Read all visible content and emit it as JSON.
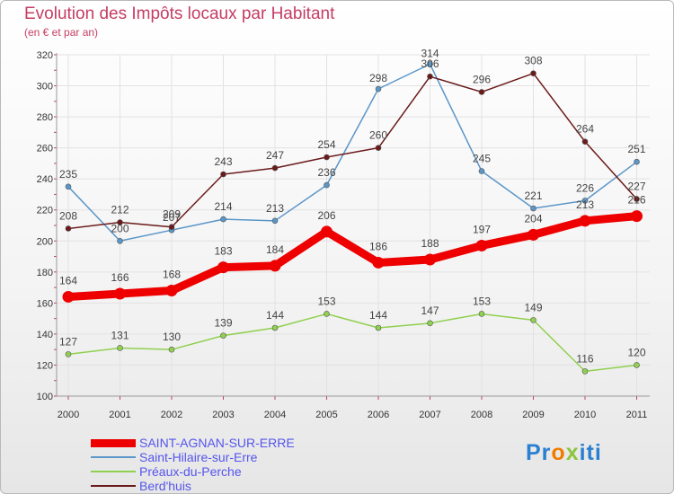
{
  "colors": {
    "title": "#c63d63",
    "grid": "#e2e2e2",
    "axis": "#999999",
    "series": [
      "#ee0000",
      "#5b96c8",
      "#90d050",
      "#6b1a1a"
    ]
  },
  "chart_data": {
    "type": "line",
    "title": "Evolution des Impôts locaux par Habitant",
    "subtitle": "(en € et par an)",
    "xlabel": "",
    "ylabel": "",
    "ylim": [
      100,
      320
    ],
    "yticks": [
      100,
      120,
      140,
      160,
      180,
      200,
      220,
      240,
      260,
      280,
      300,
      320
    ],
    "categories": [
      "2000",
      "2001",
      "2002",
      "2003",
      "2004",
      "2005",
      "2006",
      "2007",
      "2008",
      "2009",
      "2010",
      "2011"
    ],
    "grid": true,
    "legend_position": "bottom-left",
    "series": [
      {
        "name": "SAINT-AGNAN-SUR-ERRE",
        "values": [
          164,
          166,
          168,
          183,
          184,
          206,
          186,
          188,
          197,
          204,
          213,
          216
        ]
      },
      {
        "name": "Saint-Hilaire-sur-Erre",
        "values": [
          235,
          200,
          207,
          214,
          213,
          236,
          298,
          314,
          245,
          221,
          226,
          251
        ]
      },
      {
        "name": "Préaux-du-Perche",
        "values": [
          127,
          131,
          130,
          139,
          144,
          153,
          144,
          147,
          153,
          149,
          116,
          120
        ]
      },
      {
        "name": "Berd'huis",
        "values": [
          208,
          212,
          209,
          243,
          247,
          254,
          260,
          306,
          296,
          308,
          264,
          227
        ]
      }
    ]
  },
  "logo": {
    "p1": "Pr",
    "p2": "o",
    "p3": "x",
    "p4": "iti"
  }
}
